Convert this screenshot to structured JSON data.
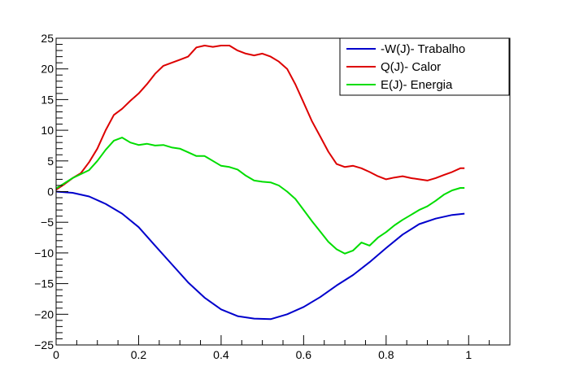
{
  "chart_data": {
    "type": "line",
    "title": "",
    "xlabel": "",
    "ylabel": "",
    "xlim": [
      0,
      1.1
    ],
    "ylim": [
      -25,
      25
    ],
    "xticks": [
      "0",
      "0.2",
      "0.4",
      "0.6",
      "0.8",
      "1"
    ],
    "xtick_values": [
      0,
      0.2,
      0.4,
      0.6,
      0.8,
      1.0
    ],
    "yticks": [
      "25",
      "20",
      "15",
      "10",
      "5",
      "0",
      "−5",
      "−10",
      "−15",
      "−20",
      "−25"
    ],
    "ytick_values": [
      25,
      20,
      15,
      10,
      5,
      0,
      -5,
      -10,
      -15,
      -20,
      -25
    ],
    "grid": false,
    "legend_position": "top-right",
    "series": [
      {
        "name": "-W(J)- Trabalho",
        "color": "#0000cc",
        "points": [
          [
            0,
            0
          ],
          [
            0.04,
            -0.2
          ],
          [
            0.08,
            -0.8
          ],
          [
            0.12,
            -2.0
          ],
          [
            0.16,
            -3.6
          ],
          [
            0.2,
            -5.8
          ],
          [
            0.24,
            -8.8
          ],
          [
            0.28,
            -11.8
          ],
          [
            0.32,
            -14.8
          ],
          [
            0.36,
            -17.3
          ],
          [
            0.4,
            -19.2
          ],
          [
            0.44,
            -20.3
          ],
          [
            0.48,
            -20.7
          ],
          [
            0.52,
            -20.8
          ],
          [
            0.56,
            -20.0
          ],
          [
            0.6,
            -18.8
          ],
          [
            0.64,
            -17.2
          ],
          [
            0.68,
            -15.3
          ],
          [
            0.72,
            -13.6
          ],
          [
            0.76,
            -11.5
          ],
          [
            0.8,
            -9.2
          ],
          [
            0.84,
            -7.0
          ],
          [
            0.88,
            -5.3
          ],
          [
            0.92,
            -4.4
          ],
          [
            0.96,
            -3.8
          ],
          [
            0.99,
            -3.6
          ]
        ]
      },
      {
        "name": "Q(J)- Calor",
        "color": "#dd0000",
        "points": [
          [
            0,
            0.3
          ],
          [
            0.02,
            1.2
          ],
          [
            0.04,
            2.2
          ],
          [
            0.06,
            3.0
          ],
          [
            0.08,
            4.8
          ],
          [
            0.1,
            7.0
          ],
          [
            0.12,
            10.0
          ],
          [
            0.14,
            12.5
          ],
          [
            0.16,
            13.5
          ],
          [
            0.18,
            14.8
          ],
          [
            0.2,
            16.0
          ],
          [
            0.22,
            17.5
          ],
          [
            0.24,
            19.2
          ],
          [
            0.26,
            20.5
          ],
          [
            0.28,
            21.0
          ],
          [
            0.3,
            21.5
          ],
          [
            0.32,
            22.0
          ],
          [
            0.34,
            23.5
          ],
          [
            0.36,
            23.8
          ],
          [
            0.38,
            23.6
          ],
          [
            0.4,
            23.8
          ],
          [
            0.42,
            23.8
          ],
          [
            0.44,
            23.0
          ],
          [
            0.46,
            22.5
          ],
          [
            0.48,
            22.2
          ],
          [
            0.5,
            22.5
          ],
          [
            0.52,
            22.0
          ],
          [
            0.54,
            21.2
          ],
          [
            0.56,
            20.0
          ],
          [
            0.58,
            17.5
          ],
          [
            0.6,
            14.5
          ],
          [
            0.62,
            11.5
          ],
          [
            0.64,
            9.0
          ],
          [
            0.66,
            6.5
          ],
          [
            0.68,
            4.5
          ],
          [
            0.7,
            4.0
          ],
          [
            0.72,
            4.2
          ],
          [
            0.74,
            3.8
          ],
          [
            0.76,
            3.2
          ],
          [
            0.78,
            2.5
          ],
          [
            0.8,
            2.0
          ],
          [
            0.82,
            2.3
          ],
          [
            0.84,
            2.5
          ],
          [
            0.86,
            2.2
          ],
          [
            0.88,
            2.0
          ],
          [
            0.9,
            1.8
          ],
          [
            0.92,
            2.2
          ],
          [
            0.94,
            2.7
          ],
          [
            0.96,
            3.2
          ],
          [
            0.98,
            3.8
          ],
          [
            0.99,
            3.8
          ]
        ]
      },
      {
        "name": "E(J)- Energia",
        "color": "#00dd00",
        "points": [
          [
            0,
            0.5
          ],
          [
            0.04,
            2.2
          ],
          [
            0.08,
            3.5
          ],
          [
            0.1,
            5.0
          ],
          [
            0.12,
            6.8
          ],
          [
            0.14,
            8.3
          ],
          [
            0.16,
            8.8
          ],
          [
            0.18,
            8.0
          ],
          [
            0.2,
            7.6
          ],
          [
            0.22,
            7.8
          ],
          [
            0.24,
            7.5
          ],
          [
            0.26,
            7.6
          ],
          [
            0.28,
            7.2
          ],
          [
            0.3,
            7.0
          ],
          [
            0.32,
            6.4
          ],
          [
            0.34,
            5.8
          ],
          [
            0.36,
            5.8
          ],
          [
            0.38,
            5.0
          ],
          [
            0.4,
            4.2
          ],
          [
            0.42,
            4.0
          ],
          [
            0.44,
            3.6
          ],
          [
            0.46,
            2.6
          ],
          [
            0.48,
            1.8
          ],
          [
            0.5,
            1.6
          ],
          [
            0.52,
            1.5
          ],
          [
            0.54,
            1.0
          ],
          [
            0.56,
            0.0
          ],
          [
            0.58,
            -1.2
          ],
          [
            0.6,
            -3.0
          ],
          [
            0.62,
            -4.8
          ],
          [
            0.64,
            -6.5
          ],
          [
            0.66,
            -8.2
          ],
          [
            0.68,
            -9.4
          ],
          [
            0.7,
            -10.1
          ],
          [
            0.72,
            -9.6
          ],
          [
            0.74,
            -8.3
          ],
          [
            0.76,
            -8.8
          ],
          [
            0.78,
            -7.5
          ],
          [
            0.8,
            -6.6
          ],
          [
            0.82,
            -5.5
          ],
          [
            0.84,
            -4.6
          ],
          [
            0.86,
            -3.8
          ],
          [
            0.88,
            -3.0
          ],
          [
            0.9,
            -2.4
          ],
          [
            0.92,
            -1.5
          ],
          [
            0.94,
            -0.5
          ],
          [
            0.96,
            0.2
          ],
          [
            0.98,
            0.6
          ],
          [
            0.99,
            0.6
          ]
        ]
      }
    ]
  }
}
